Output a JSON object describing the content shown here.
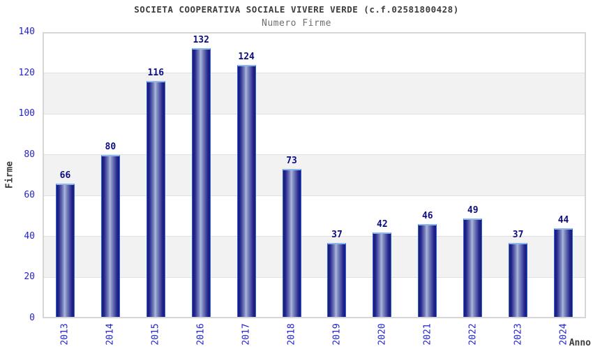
{
  "chart_data": {
    "type": "bar",
    "title": "SOCIETA COOPERATIVA SOCIALE VIVERE VERDE (c.f.02581800428)",
    "subtitle": "Numero Firme",
    "xlabel": "Anno",
    "ylabel": "Firme",
    "categories": [
      "2013",
      "2014",
      "2015",
      "2016",
      "2017",
      "2018",
      "2019",
      "2020",
      "2021",
      "2022",
      "2023",
      "2024"
    ],
    "values": [
      66,
      80,
      116,
      132,
      124,
      73,
      37,
      42,
      46,
      49,
      37,
      44
    ],
    "ylim": [
      0,
      140
    ],
    "ytick_step": 20,
    "yticks": [
      0,
      20,
      40,
      60,
      80,
      100,
      120,
      140
    ],
    "legend": "none",
    "grid": "alternating-horizontal-bands",
    "colors": {
      "title": "#3c3c3c",
      "subtitle": "#6e6e6e",
      "tick_label": "#2323cc",
      "value_label": "#0d0d80",
      "axis_title": "#3c3c3c",
      "band_gray": "#f2f2f2",
      "gridline": "#e0e0e0",
      "plot_border": "#d6d6d6",
      "bar_dark": "#1b1b78",
      "bar_highlight": "#aeb6da",
      "bar_outline": "#2d63d8",
      "bar_top_edge": "#8cb8ee"
    }
  }
}
